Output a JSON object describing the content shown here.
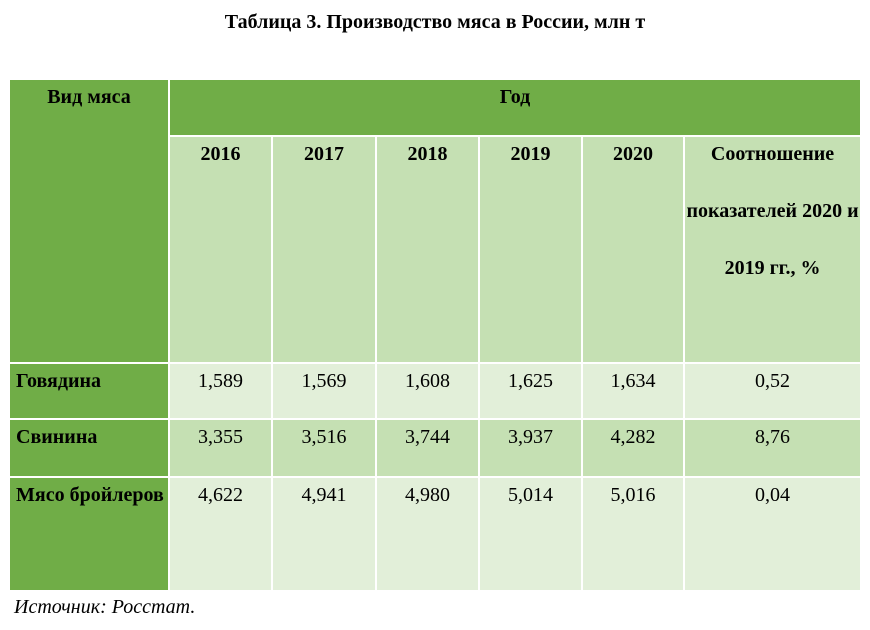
{
  "title": "Таблица 3. Производство мяса в России, млн т",
  "table": {
    "header": {
      "row_label": "Вид мяса",
      "group": "Год",
      "columns": [
        "2016",
        "2017",
        "2018",
        "2019",
        "2020",
        "Соотношение показателей 2020 и 2019 гг., %"
      ]
    },
    "rows": [
      [
        "Говядина",
        "1,589",
        "1,569",
        "1,608",
        "1,625",
        "1,634",
        "0,52"
      ],
      [
        "Свинина",
        "3,355",
        "3,516",
        "3,744",
        "3,937",
        "4,282",
        "8,76"
      ],
      [
        "Мясо бройлеров",
        "4,622",
        "4,941",
        "4,980",
        "5,014",
        "5,016",
        "0,04"
      ]
    ]
  },
  "source": "Источник: Росстат."
}
